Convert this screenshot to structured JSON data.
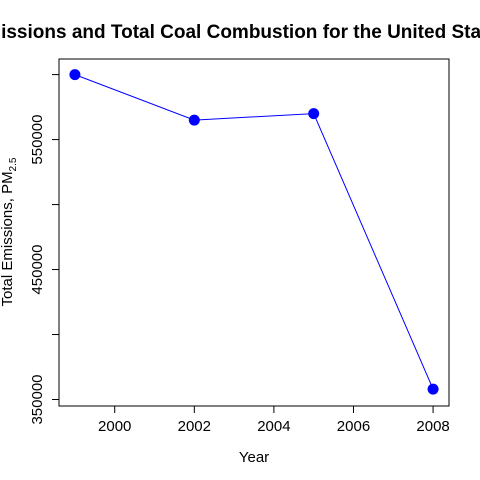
{
  "chart_data": {
    "type": "line",
    "title": "Emissions and Total Coal Combustion for the United States",
    "xlabel": "Year",
    "ylabel": "Total Emissions, PM",
    "ylabel_subscript": "2.5",
    "x": [
      1999,
      2002,
      2005,
      2008
    ],
    "series": [
      {
        "values": [
          600000,
          565000,
          570000,
          358000
        ]
      }
    ],
    "xlim": [
      1998.6,
      2008.4
    ],
    "ylim": [
      345000,
      612000
    ],
    "x_ticks": [
      2000,
      2002,
      2004,
      2006,
      2008
    ],
    "x_tick_labels": [
      "2000",
      "2002",
      "2004",
      "2006",
      "2008"
    ],
    "y_ticks": [
      350000,
      400000,
      450000,
      500000,
      550000,
      600000
    ],
    "y_tick_labels": [
      "350000",
      "",
      "450000",
      "",
      "550000",
      ""
    ],
    "line_color": "#0000ff",
    "marker_color": "#0000ff",
    "grid": false,
    "legend": "none"
  }
}
